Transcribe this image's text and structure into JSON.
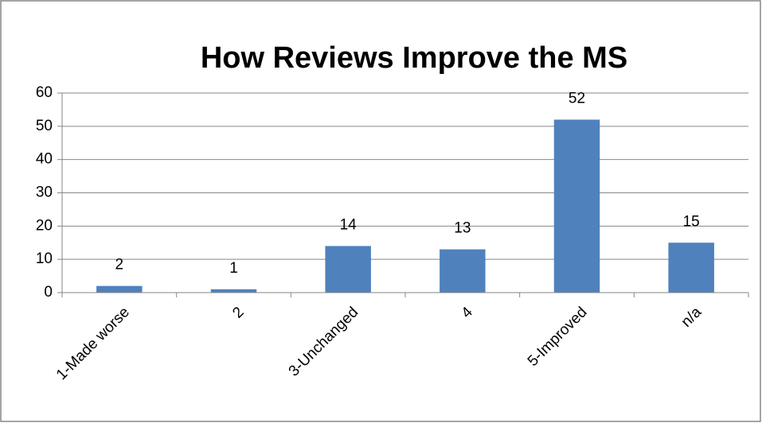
{
  "chart_data": {
    "type": "bar",
    "title": "How Reviews Improve the MS",
    "categories": [
      "1-Made worse",
      "2",
      "3-Unchanged",
      "4",
      "5-Improved",
      "n/a"
    ],
    "values": [
      2,
      1,
      14,
      13,
      52,
      15
    ],
    "color": "#4f81bd",
    "ylim": [
      0,
      60
    ],
    "yticks": [
      0,
      10,
      20,
      30,
      40,
      50,
      60
    ],
    "grid": true
  }
}
